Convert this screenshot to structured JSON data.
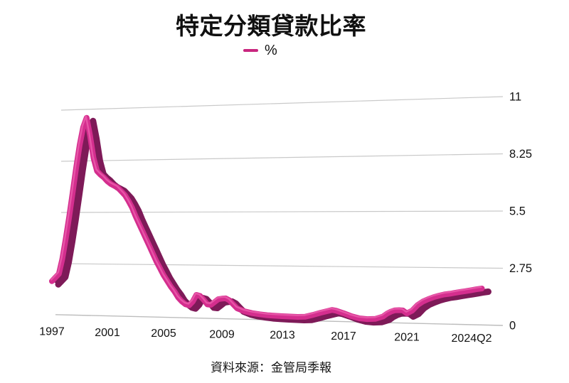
{
  "chart_data": {
    "type": "line",
    "style": "3d-ribbon",
    "title": "特定分類貸款比率",
    "legend_label": "%",
    "legend_position": "top-center",
    "source": "資料來源：金管局季報",
    "grid": "horizontal-only, perspective-slanted",
    "colors": {
      "line": "#d42e8e",
      "line_shadow": "#7e1a58",
      "line_highlight": "#ea5cab",
      "legend_swatch": "#c9267f",
      "gridline": "#c9c9c9",
      "axis_line": "#bdbdbd",
      "text": "#121212",
      "background": "#ffffff"
    },
    "y_axis": {
      "side": "right",
      "min": 0,
      "max": 11,
      "ticks": [
        11,
        8.25,
        5.5,
        2.75,
        0
      ],
      "tick_labels": [
        "11",
        "8.25",
        "5.5",
        "2.75",
        "0"
      ]
    },
    "x_axis": {
      "tick_labels": [
        "1997",
        "2001",
        "2005",
        "2009",
        "2013",
        "2017",
        "2021",
        "2024Q2"
      ],
      "tick_years": [
        1997,
        2001,
        2005,
        2009,
        2013,
        2017,
        2021,
        2024.5
      ]
    },
    "series": [
      {
        "name": "%",
        "points": [
          [
            1997.0,
            1.8
          ],
          [
            1997.25,
            2.0
          ],
          [
            1997.5,
            2.2
          ],
          [
            1997.75,
            3.0
          ],
          [
            1998.0,
            4.1
          ],
          [
            1998.25,
            5.3
          ],
          [
            1998.5,
            6.6
          ],
          [
            1998.75,
            7.9
          ],
          [
            1999.0,
            9.1
          ],
          [
            1999.25,
            10.05
          ],
          [
            1999.5,
            10.55
          ],
          [
            1999.75,
            9.6
          ],
          [
            2000.0,
            8.4
          ],
          [
            2000.25,
            7.7
          ],
          [
            2000.5,
            7.5
          ],
          [
            2000.75,
            7.35
          ],
          [
            2001.0,
            7.15
          ],
          [
            2001.25,
            7.0
          ],
          [
            2001.5,
            6.9
          ],
          [
            2001.75,
            6.8
          ],
          [
            2002.0,
            6.6
          ],
          [
            2002.25,
            6.4
          ],
          [
            2002.5,
            6.1
          ],
          [
            2002.75,
            5.75
          ],
          [
            2003.0,
            5.3
          ],
          [
            2003.25,
            4.9
          ],
          [
            2003.5,
            4.5
          ],
          [
            2003.75,
            4.1
          ],
          [
            2004.0,
            3.7
          ],
          [
            2004.25,
            3.3
          ],
          [
            2004.5,
            2.9
          ],
          [
            2004.75,
            2.55
          ],
          [
            2005.0,
            2.2
          ],
          [
            2005.25,
            1.9
          ],
          [
            2005.5,
            1.6
          ],
          [
            2005.75,
            1.35
          ],
          [
            2006.0,
            1.05
          ],
          [
            2006.25,
            0.85
          ],
          [
            2006.5,
            0.7
          ],
          [
            2006.75,
            0.65
          ],
          [
            2007.0,
            0.85
          ],
          [
            2007.25,
            1.2
          ],
          [
            2007.5,
            1.15
          ],
          [
            2007.75,
            0.95
          ],
          [
            2008.0,
            0.72
          ],
          [
            2008.25,
            0.7
          ],
          [
            2008.5,
            0.85
          ],
          [
            2008.75,
            1.0
          ],
          [
            2009.0,
            1.03
          ],
          [
            2009.25,
            1.05
          ],
          [
            2009.5,
            0.95
          ],
          [
            2009.75,
            0.75
          ],
          [
            2010.0,
            0.55
          ],
          [
            2010.5,
            0.4
          ],
          [
            2011.0,
            0.32
          ],
          [
            2011.5,
            0.27
          ],
          [
            2012.0,
            0.23
          ],
          [
            2012.5,
            0.21
          ],
          [
            2013.0,
            0.2
          ],
          [
            2013.5,
            0.19
          ],
          [
            2014.0,
            0.18
          ],
          [
            2014.5,
            0.2
          ],
          [
            2015.0,
            0.3
          ],
          [
            2015.5,
            0.42
          ],
          [
            2016.0,
            0.52
          ],
          [
            2016.25,
            0.57
          ],
          [
            2016.5,
            0.54
          ],
          [
            2017.0,
            0.42
          ],
          [
            2017.5,
            0.28
          ],
          [
            2018.0,
            0.18
          ],
          [
            2018.5,
            0.15
          ],
          [
            2019.0,
            0.17
          ],
          [
            2019.5,
            0.3
          ],
          [
            2019.75,
            0.45
          ],
          [
            2020.0,
            0.55
          ],
          [
            2020.25,
            0.62
          ],
          [
            2020.5,
            0.63
          ],
          [
            2020.75,
            0.62
          ],
          [
            2021.0,
            0.48
          ],
          [
            2021.25,
            0.62
          ],
          [
            2021.5,
            0.9
          ],
          [
            2021.75,
            1.08
          ],
          [
            2022.0,
            1.2
          ],
          [
            2022.25,
            1.3
          ],
          [
            2022.5,
            1.38
          ],
          [
            2022.75,
            1.44
          ],
          [
            2023.0,
            1.48
          ],
          [
            2023.25,
            1.53
          ],
          [
            2023.5,
            1.58
          ],
          [
            2023.75,
            1.62
          ],
          [
            2024.0,
            1.67
          ],
          [
            2024.25,
            1.72
          ],
          [
            2024.5,
            1.76
          ]
        ]
      }
    ]
  }
}
